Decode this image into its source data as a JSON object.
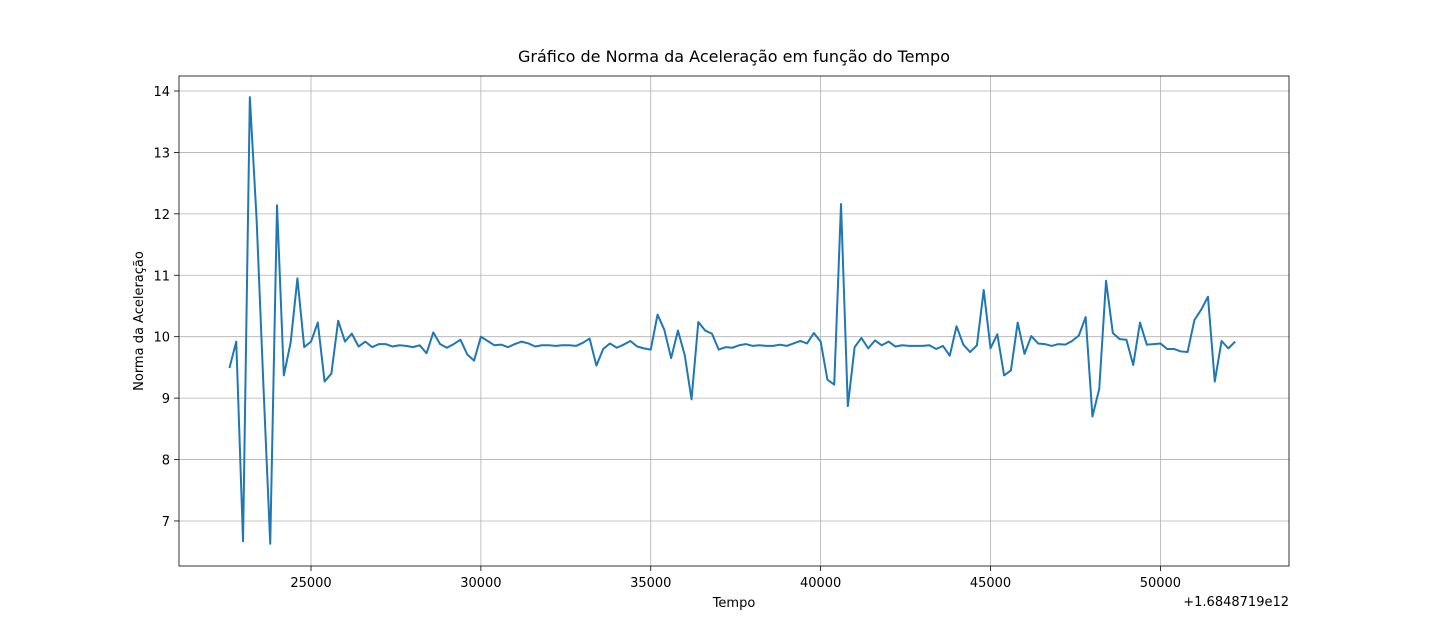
{
  "chart_data": {
    "type": "line",
    "title": "Gráfico de Norma da Aceleração em função do Tempo",
    "x_label": "Tempo",
    "y_label": "Norma da Aceleração",
    "x_offset_label": "+1.6848719e12",
    "color": "#1f77b4",
    "grid": true,
    "xlim": [
      21115,
      53785
    ],
    "ylim": [
      6.267,
      14.244
    ],
    "xticks": [
      25000,
      30000,
      35000,
      40000,
      45000,
      50000
    ],
    "yticks": [
      7,
      8,
      9,
      10,
      11,
      12,
      13,
      14
    ],
    "x": [
      22600,
      22800,
      23000,
      23200,
      23400,
      23600,
      23800,
      24000,
      24200,
      24400,
      24600,
      24800,
      25000,
      25200,
      25400,
      25600,
      25800,
      26000,
      26200,
      26400,
      26600,
      26800,
      27000,
      27200,
      27400,
      27600,
      27800,
      28000,
      28200,
      28400,
      28600,
      28800,
      29000,
      29200,
      29400,
      29600,
      29800,
      30000,
      30200,
      30400,
      30600,
      30800,
      31000,
      31200,
      31400,
      31600,
      31800,
      32000,
      32200,
      32400,
      32600,
      32800,
      33000,
      33200,
      33400,
      33600,
      33800,
      34000,
      34200,
      34400,
      34600,
      34800,
      35000,
      35200,
      35400,
      35600,
      35800,
      36000,
      36200,
      36400,
      36600,
      36800,
      37000,
      37200,
      37400,
      37600,
      37800,
      38000,
      38200,
      38400,
      38600,
      38800,
      39000,
      39200,
      39400,
      39600,
      39800,
      40000,
      40200,
      40400,
      40600,
      40800,
      41000,
      41200,
      41400,
      41600,
      41800,
      42000,
      42200,
      42400,
      42600,
      42800,
      43000,
      43200,
      43400,
      43600,
      43800,
      44000,
      44200,
      44400,
      44600,
      44800,
      45000,
      45200,
      45400,
      45600,
      45800,
      46000,
      46200,
      46400,
      46600,
      46800,
      47000,
      47200,
      47400,
      47600,
      47800,
      48000,
      48200,
      48400,
      48600,
      48800,
      49000,
      49200,
      49400,
      49600,
      49800,
      50000,
      50200,
      50400,
      50600,
      50800,
      51000,
      51200,
      51400,
      51600,
      51800,
      52000,
      52200
    ],
    "values": [
      9.49,
      9.92,
      6.67,
      13.9,
      11.9,
      9.2,
      6.63,
      12.14,
      9.37,
      9.9,
      10.95,
      9.83,
      9.92,
      10.23,
      9.27,
      9.4,
      10.26,
      9.92,
      10.05,
      9.84,
      9.92,
      9.83,
      9.88,
      9.88,
      9.84,
      9.86,
      9.85,
      9.83,
      9.86,
      9.73,
      10.07,
      9.88,
      9.82,
      9.88,
      9.95,
      9.71,
      9.61,
      10.0,
      9.93,
      9.86,
      9.87,
      9.83,
      9.88,
      9.92,
      9.89,
      9.84,
      9.86,
      9.86,
      9.85,
      9.86,
      9.86,
      9.85,
      9.9,
      9.97,
      9.53,
      9.8,
      9.89,
      9.82,
      9.87,
      9.93,
      9.84,
      9.81,
      9.79,
      10.36,
      10.11,
      9.65,
      10.1,
      9.7,
      8.98,
      10.24,
      10.1,
      10.05,
      9.79,
      9.83,
      9.82,
      9.86,
      9.88,
      9.85,
      9.86,
      9.85,
      9.85,
      9.87,
      9.85,
      9.89,
      9.93,
      9.89,
      10.06,
      9.92,
      9.3,
      9.22,
      12.16,
      8.87,
      9.83,
      9.98,
      9.81,
      9.94,
      9.86,
      9.92,
      9.84,
      9.86,
      9.85,
      9.85,
      9.85,
      9.86,
      9.8,
      9.85,
      9.69,
      10.17,
      9.87,
      9.75,
      9.86,
      10.76,
      9.81,
      10.04,
      9.37,
      9.45,
      10.23,
      9.72,
      10.01,
      9.89,
      9.88,
      9.85,
      9.88,
      9.87,
      9.93,
      10.02,
      10.32,
      8.7,
      9.15,
      10.91,
      10.06,
      9.96,
      9.95,
      9.54,
      10.23,
      9.87,
      9.88,
      9.89,
      9.8,
      9.8,
      9.76,
      9.75,
      10.27,
      10.44,
      10.65,
      9.27,
      9.93,
      9.81,
      9.92
    ]
  }
}
